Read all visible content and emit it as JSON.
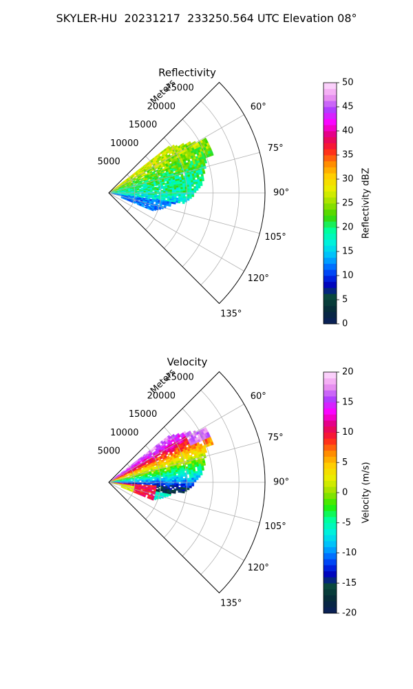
{
  "figure": {
    "suptitle": "SKYLER-HU  20231217  233250.564 UTC Elevation 08°"
  },
  "chart_data": [
    {
      "type": "heatmap",
      "subtype": "polar-sector (PPI radar scan)",
      "title": "Reflectivity",
      "range_label": "Meters",
      "theta_ticks": [
        "60°",
        "75°",
        "90°",
        "105°",
        "120°",
        "135°"
      ],
      "theta_range_deg": [
        45,
        135
      ],
      "r_ticks": [
        5000,
        10000,
        15000,
        20000,
        25000
      ],
      "r_max": 30000,
      "grid": true,
      "colorbar": {
        "label": "Reflectivity dBZ",
        "range": [
          0,
          50
        ],
        "ticks": [
          0,
          5,
          10,
          15,
          20,
          25,
          30,
          35,
          40,
          45,
          50
        ],
        "colormap": [
          "#0b1f5c",
          "#062a3a",
          "#0a4a3a",
          "#0000c8",
          "#0055ff",
          "#00b8ff",
          "#00f0e0",
          "#00ff9a",
          "#3ad600",
          "#9ae000",
          "#e8f000",
          "#ffd000",
          "#ff8800",
          "#ff2020",
          "#e00070",
          "#ff00ff",
          "#b040ff",
          "#ee99ee",
          "#ffe0ff"
        ]
      },
      "description": "Echoes concentrated at azimuth 55–100°, ranges up to ~20000 m; mostly 18–28 dBZ, up to ~30 near the northern edge, 10–15 dBZ in the southern lobe near 100–110°."
    },
    {
      "type": "heatmap",
      "subtype": "polar-sector (PPI radar scan)",
      "title": "Velocity",
      "range_label": "Meters",
      "theta_ticks": [
        "60°",
        "75°",
        "90°",
        "105°",
        "120°",
        "135°"
      ],
      "theta_range_deg": [
        45,
        135
      ],
      "r_ticks": [
        5000,
        10000,
        15000,
        20000,
        25000
      ],
      "r_max": 30000,
      "grid": true,
      "colorbar": {
        "label": "Velocity (m/s)",
        "range": [
          -20,
          20
        ],
        "ticks": [
          -20,
          -15,
          -10,
          -5,
          0,
          5,
          10,
          15,
          20
        ],
        "colormap": [
          "#0b1f5c",
          "#062a3a",
          "#0a4a3a",
          "#0000c8",
          "#0055ff",
          "#00b8ff",
          "#00f0e0",
          "#00ff9a",
          "#22ee00",
          "#9ae000",
          "#e8f000",
          "#ffd000",
          "#ff8800",
          "#ff2020",
          "#e00070",
          "#ff00ff",
          "#b040ff",
          "#ee99ee",
          "#ffe0ff"
        ]
      },
      "description": "Positive velocities 10–15 m/s toward azimuth 55–70°, grading through 0 near 80° to about -5…-10 m/s near 90–100°; a ring of 10 m/s near the radar on the southern side."
    }
  ]
}
